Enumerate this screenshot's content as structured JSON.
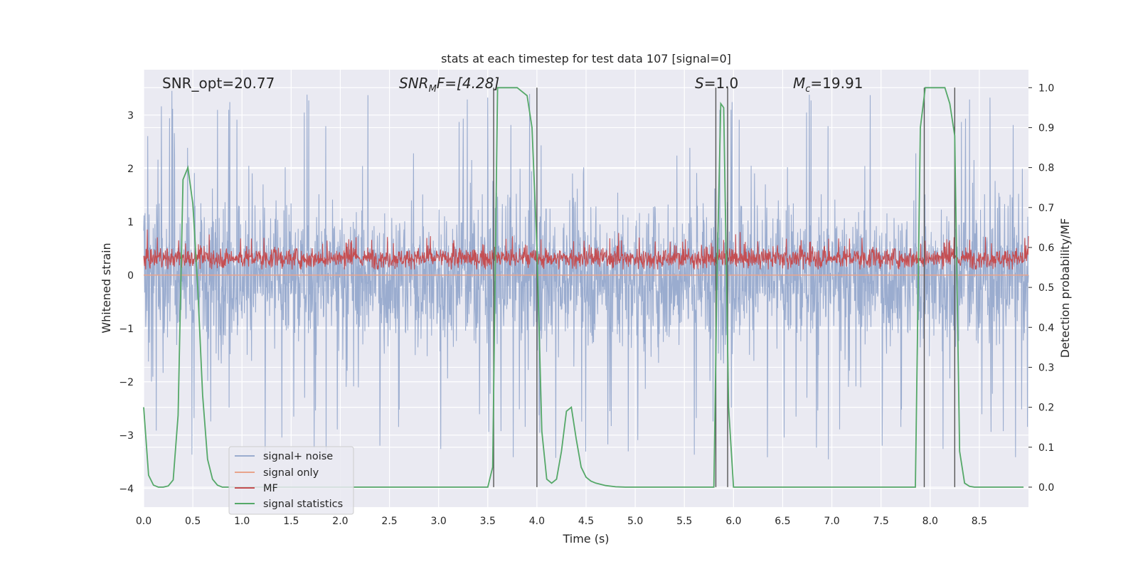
{
  "chart_data": {
    "type": "line",
    "title": "stats at each timestep for test data 107 [signal=0]",
    "xlabel": "Time (s)",
    "ylabel_left": "Whitened strain",
    "ylabel_right": "Detection probability/MF",
    "xlim": [
      0.0,
      9.0
    ],
    "ylim_left": [
      -4.35,
      3.85
    ],
    "ylim_right": [
      -0.05,
      1.045
    ],
    "x_ticks": [
      "0.0",
      "0.5",
      "1.0",
      "1.5",
      "2.0",
      "2.5",
      "3.0",
      "3.5",
      "4.0",
      "4.5",
      "5.0",
      "5.5",
      "6.0",
      "6.5",
      "7.0",
      "7.5",
      "8.0",
      "8.5"
    ],
    "y_ticks_left": [
      "3",
      "2",
      "1",
      "0",
      "−1",
      "−2",
      "−3",
      "−4"
    ],
    "y_ticks_right": [
      "1.0",
      "0.9",
      "0.8",
      "0.7",
      "0.6",
      "0.5",
      "0.4",
      "0.3",
      "0.2",
      "0.1",
      "0.0"
    ],
    "grid": true,
    "legend_position": "lower-left",
    "annotations": {
      "snr_opt": "SNR_opt=20.77",
      "snr_mf_main": "SNR",
      "snr_mf_sub": "M",
      "snr_mf_rest": "F=[4.28]",
      "s_main": "S",
      "s_rest": "=1.0",
      "mc_main": "M",
      "mc_sub": "c",
      "mc_rest": "=19.91"
    },
    "series": [
      {
        "name": "signal+ noise",
        "color": "#9aaccf",
        "axis": "left",
        "approx_range": [
          -4.0,
          3.5
        ]
      },
      {
        "name": "signal only",
        "color": "#e8a48c",
        "axis": "left",
        "values_const": 0.0
      },
      {
        "name": "MF",
        "color": "#c44e52",
        "axis": "right",
        "approx_range": [
          0.52,
          0.64
        ]
      },
      {
        "name": "signal statistics",
        "color": "#55a868",
        "axis": "right",
        "x": [
          0.0,
          0.05,
          0.1,
          0.15,
          0.2,
          0.25,
          0.3,
          0.35,
          0.4,
          0.45,
          0.5,
          0.55,
          0.6,
          0.65,
          0.7,
          0.75,
          0.8,
          0.85,
          0.9,
          1.0,
          1.5,
          2.0,
          2.5,
          3.0,
          3.5,
          3.55,
          3.6,
          3.65,
          3.7,
          3.8,
          3.9,
          3.95,
          4.0,
          4.05,
          4.1,
          4.15,
          4.2,
          4.25,
          4.3,
          4.35,
          4.4,
          4.45,
          4.5,
          4.55,
          4.6,
          4.7,
          4.8,
          4.9,
          5.0,
          5.5,
          5.7,
          5.8,
          5.83,
          5.87,
          5.9,
          5.95,
          6.0,
          6.05,
          6.5,
          7.0,
          7.5,
          7.85,
          7.9,
          7.95,
          8.0,
          8.1,
          8.15,
          8.2,
          8.25,
          8.3,
          8.35,
          8.4,
          8.45,
          8.5,
          8.55,
          8.6,
          8.7,
          8.8,
          8.9,
          8.95
        ],
        "values": [
          0.2,
          0.03,
          0.005,
          0.0,
          0.0,
          0.003,
          0.018,
          0.18,
          0.77,
          0.8,
          0.71,
          0.5,
          0.23,
          0.07,
          0.02,
          0.005,
          0.0,
          0.0,
          0.0,
          0.0,
          0.0,
          0.0,
          0.0,
          0.0,
          0.0,
          0.05,
          1.0,
          1.0,
          1.0,
          1.0,
          0.98,
          0.9,
          0.6,
          0.14,
          0.02,
          0.01,
          0.02,
          0.09,
          0.19,
          0.2,
          0.12,
          0.05,
          0.025,
          0.015,
          0.01,
          0.004,
          0.001,
          0.0,
          0.0,
          0.0,
          0.0,
          0.0,
          0.5,
          0.96,
          0.95,
          0.2,
          0.0,
          0.0,
          0.0,
          0.0,
          0.0,
          0.0,
          0.9,
          1.0,
          1.0,
          1.0,
          1.0,
          0.96,
          0.88,
          0.09,
          0.01,
          0.002,
          0.0,
          0.0,
          0.0,
          0.0,
          0.0,
          0.0,
          0.0,
          0.0
        ]
      }
    ],
    "vertical_markers_x": [
      3.56,
      4.0,
      5.82,
      5.94,
      7.94,
      8.25
    ]
  }
}
